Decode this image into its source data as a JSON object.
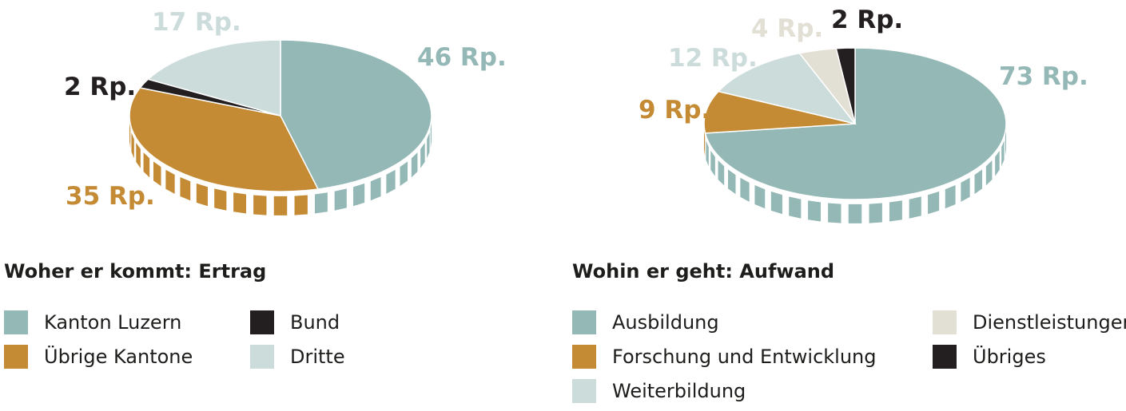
{
  "colors": {
    "teal": "#93b8b6",
    "gold": "#c48a34",
    "black": "#231f20",
    "light_teal": "#cbdcdb",
    "beige": "#e2dfd5"
  },
  "chart_data": [
    {
      "type": "pie",
      "title": "Woher er kommt: Ertrag",
      "unit": "Rp.",
      "slices": [
        {
          "name": "Kanton Luzern",
          "value": 46,
          "label": "46 Rp.",
          "color": "#93b8b6"
        },
        {
          "name": "Übrige Kantone",
          "value": 35,
          "label": "35 Rp.",
          "color": "#c48a34"
        },
        {
          "name": "Bund",
          "value": 2,
          "label": "2 Rp.",
          "color": "#231f20"
        },
        {
          "name": "Dritte",
          "value": 17,
          "label": "17 Rp.",
          "color": "#cbdcdb"
        }
      ],
      "legend_rows": [
        [
          {
            "name": "Kanton Luzern",
            "color": "#93b8b6"
          },
          {
            "name": "Bund",
            "color": "#231f20"
          }
        ],
        [
          {
            "name": "Übrige Kantone",
            "color": "#c48a34"
          },
          {
            "name": "Dritte",
            "color": "#cbdcdb"
          }
        ]
      ]
    },
    {
      "type": "pie",
      "title": "Wohin er geht: Aufwand",
      "unit": "Rp.",
      "slices": [
        {
          "name": "Ausbildung",
          "value": 73,
          "label": "73 Rp.",
          "color": "#93b8b6"
        },
        {
          "name": "Forschung und Entwicklung",
          "value": 9,
          "label": "9 Rp.",
          "color": "#c48a34"
        },
        {
          "name": "Weiterbildung",
          "value": 12,
          "label": "12 Rp.",
          "color": "#cbdcdb"
        },
        {
          "name": "Dienstleistungen",
          "value": 4,
          "label": "4 Rp.",
          "color": "#e2dfd5"
        },
        {
          "name": "Übriges",
          "value": 2,
          "label": "2 Rp.",
          "color": "#231f20"
        }
      ],
      "legend_rows": [
        [
          {
            "name": "Ausbildung",
            "color": "#93b8b6"
          },
          {
            "name": "Dienstleistungen",
            "color": "#e2dfd5"
          }
        ],
        [
          {
            "name": "Forschung und Entwicklung",
            "color": "#c48a34"
          },
          {
            "name": "Übriges",
            "color": "#231f20"
          }
        ],
        [
          {
            "name": "Weiterbildung",
            "color": "#cbdcdb"
          }
        ]
      ]
    }
  ]
}
